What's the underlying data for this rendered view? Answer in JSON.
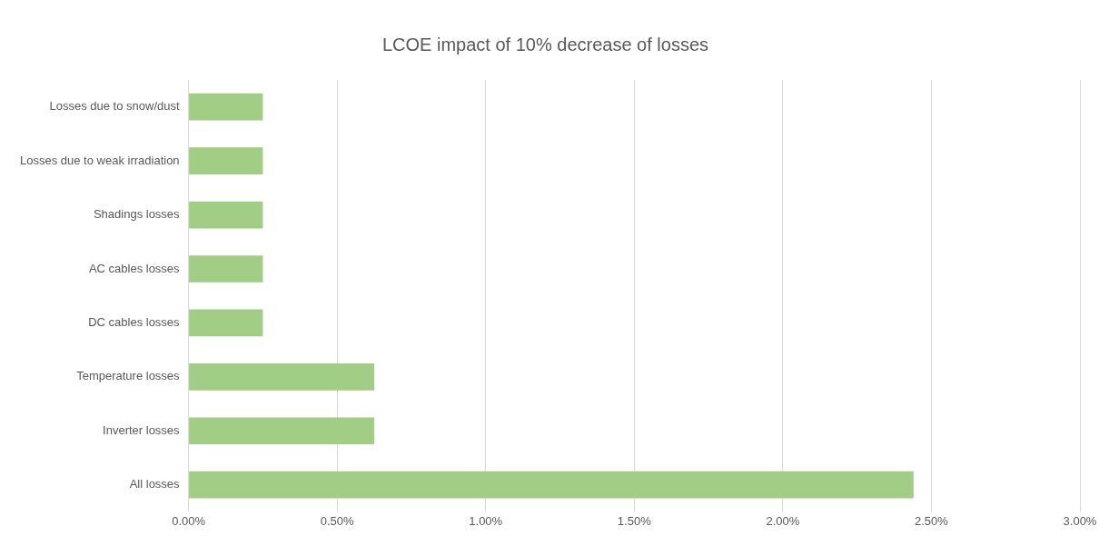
{
  "chart_data": {
    "type": "bar",
    "orientation": "horizontal",
    "title": "LCOE impact of 10% decrease of losses",
    "categories": [
      "Losses due to snow/dust",
      "Losses due to weak irradiation",
      "Shadings losses",
      "AC cables losses",
      "DC cables losses",
      "Temperature losses",
      "Inverter losses",
      "All losses"
    ],
    "values": [
      0.25,
      0.25,
      0.25,
      0.25,
      0.25,
      0.625,
      0.625,
      2.44
    ],
    "color": "#a1cd85",
    "xlim": [
      0,
      3
    ],
    "xticks": [
      {
        "value": 0,
        "label": "0.00%"
      },
      {
        "value": 0.5,
        "label": "0.50%"
      },
      {
        "value": 1,
        "label": "1.00%"
      },
      {
        "value": 1.5,
        "label": "1.50%"
      },
      {
        "value": 2,
        "label": "2.00%"
      },
      {
        "value": 2.5,
        "label": "2.50%"
      },
      {
        "value": 3,
        "label": "3.00%"
      }
    ],
    "grid": "x",
    "legend": false
  }
}
